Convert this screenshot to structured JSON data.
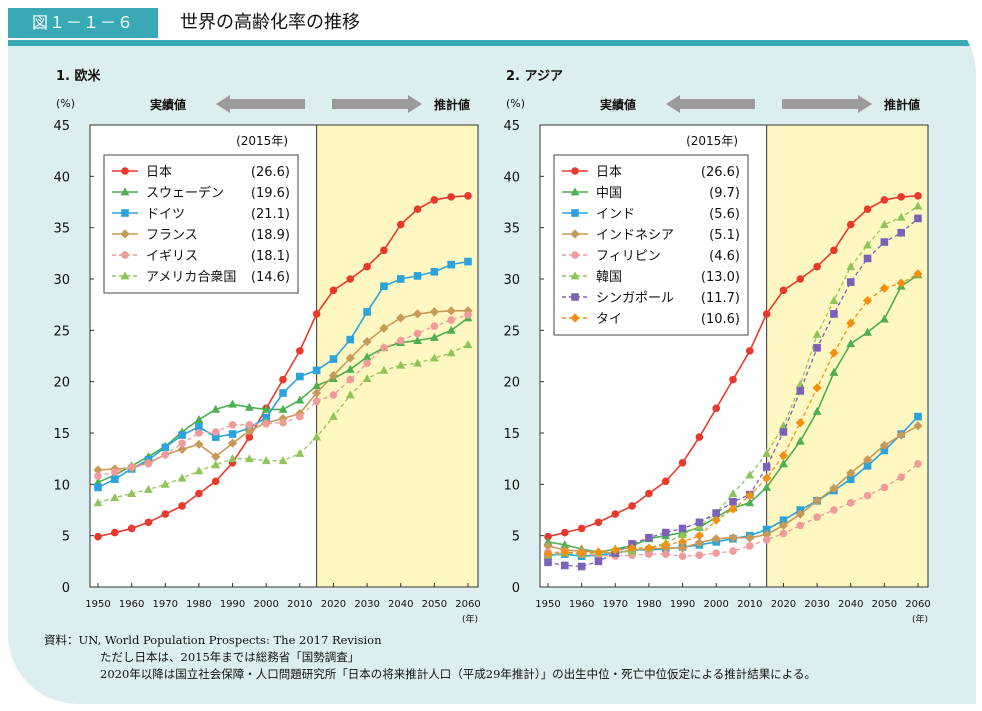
{
  "figure": {
    "label": "図１－１－６",
    "title": "世界の高齢化率の推移"
  },
  "chart_data": [
    {
      "type": "line",
      "title": "1. 欧米",
      "ylabel": "(%)",
      "xlabel": "(年)",
      "ylim": [
        0,
        45
      ],
      "xlim": [
        1950,
        2060
      ],
      "yticks": [
        0,
        5,
        10,
        15,
        20,
        25,
        30,
        35,
        40,
        45
      ],
      "xticks": [
        1950,
        1960,
        1970,
        1980,
        1990,
        2000,
        2010,
        2020,
        2030,
        2040,
        2050,
        2060
      ],
      "grid": false,
      "projection_start": 2015,
      "label_actual": "実績値",
      "label_projected": "推計値",
      "legend_title": "(2015年)",
      "legend_position": "top-left",
      "x": [
        1950,
        1955,
        1960,
        1965,
        1970,
        1975,
        1980,
        1985,
        1990,
        1995,
        2000,
        2005,
        2010,
        2015,
        2020,
        2025,
        2030,
        2035,
        2040,
        2045,
        2050,
        2055,
        2060
      ],
      "series": [
        {
          "name": "日本",
          "value_2015": "(26.6)",
          "color": "#e8392a",
          "marker": "circle",
          "dashed": false,
          "values": [
            4.9,
            5.3,
            5.7,
            6.3,
            7.1,
            7.9,
            9.1,
            10.3,
            12.1,
            14.6,
            17.4,
            20.2,
            23.0,
            26.6,
            28.9,
            30.0,
            31.2,
            32.8,
            35.3,
            36.8,
            37.7,
            38.0,
            38.1
          ]
        },
        {
          "name": "スウェーデン",
          "value_2015": "(19.6)",
          "color": "#4caf50",
          "marker": "triangle",
          "dashed": false,
          "values": [
            10.2,
            10.9,
            11.8,
            12.7,
            13.7,
            15.1,
            16.3,
            17.3,
            17.8,
            17.5,
            17.3,
            17.3,
            18.2,
            19.6,
            20.3,
            21.2,
            22.4,
            23.3,
            23.8,
            24.0,
            24.3,
            25.0,
            26.2
          ]
        },
        {
          "name": "ドイツ",
          "value_2015": "(21.1)",
          "color": "#2ba3db",
          "marker": "square",
          "dashed": false,
          "values": [
            9.7,
            10.5,
            11.5,
            12.4,
            13.6,
            14.8,
            15.6,
            14.6,
            14.9,
            15.5,
            16.5,
            18.9,
            20.5,
            21.1,
            22.2,
            24.1,
            26.8,
            29.3,
            30.0,
            30.3,
            30.7,
            31.4,
            31.7
          ]
        },
        {
          "name": "フランス",
          "value_2015": "(18.9)",
          "color": "#c89a5a",
          "marker": "diamond",
          "dashed": false,
          "values": [
            11.4,
            11.5,
            11.6,
            12.1,
            12.9,
            13.4,
            13.9,
            12.7,
            14.0,
            15.2,
            16.0,
            16.4,
            16.9,
            18.9,
            20.6,
            22.3,
            23.9,
            25.2,
            26.2,
            26.6,
            26.8,
            26.9,
            26.9
          ]
        },
        {
          "name": "イギリス",
          "value_2015": "(18.1)",
          "color": "#f19a9a",
          "marker": "circle",
          "dashed": true,
          "values": [
            10.8,
            11.2,
            11.7,
            12.0,
            12.9,
            14.0,
            15.0,
            15.1,
            15.8,
            15.8,
            15.9,
            16.0,
            16.6,
            18.1,
            18.7,
            20.2,
            21.8,
            23.3,
            24.0,
            24.7,
            25.4,
            26.0,
            26.5
          ]
        },
        {
          "name": "アメリカ合衆国",
          "value_2015": "(14.6)",
          "color": "#8fc558",
          "marker": "triangle",
          "dashed": true,
          "values": [
            8.2,
            8.7,
            9.1,
            9.5,
            10.0,
            10.6,
            11.3,
            11.9,
            12.5,
            12.5,
            12.3,
            12.3,
            13.0,
            14.6,
            16.6,
            18.7,
            20.3,
            21.1,
            21.6,
            21.8,
            22.3,
            22.8,
            23.6
          ]
        }
      ]
    },
    {
      "type": "line",
      "title": "2. アジア",
      "ylabel": "(%)",
      "xlabel": "(年)",
      "ylim": [
        0,
        45
      ],
      "xlim": [
        1950,
        2060
      ],
      "yticks": [
        0,
        5,
        10,
        15,
        20,
        25,
        30,
        35,
        40,
        45
      ],
      "xticks": [
        1950,
        1960,
        1970,
        1980,
        1990,
        2000,
        2010,
        2020,
        2030,
        2040,
        2050,
        2060
      ],
      "grid": false,
      "projection_start": 2015,
      "label_actual": "実績値",
      "label_projected": "推計値",
      "legend_title": "(2015年)",
      "legend_position": "top-left",
      "x": [
        1950,
        1955,
        1960,
        1965,
        1970,
        1975,
        1980,
        1985,
        1990,
        1995,
        2000,
        2005,
        2010,
        2015,
        2020,
        2025,
        2030,
        2035,
        2040,
        2045,
        2050,
        2055,
        2060
      ],
      "series": [
        {
          "name": "日本",
          "value_2015": "(26.6)",
          "color": "#e8392a",
          "marker": "circle",
          "dashed": false,
          "values": [
            4.9,
            5.3,
            5.7,
            6.3,
            7.1,
            7.9,
            9.1,
            10.3,
            12.1,
            14.6,
            17.4,
            20.2,
            23.0,
            26.6,
            28.9,
            30.0,
            31.2,
            32.8,
            35.3,
            36.8,
            37.7,
            38.0,
            38.1
          ]
        },
        {
          "name": "中国",
          "value_2015": "(9.7)",
          "color": "#4caf50",
          "marker": "triangle",
          "dashed": false,
          "values": [
            4.4,
            4.1,
            3.7,
            3.4,
            3.7,
            4.0,
            4.7,
            5.0,
            5.3,
            5.8,
            6.8,
            7.7,
            8.2,
            9.7,
            12.0,
            14.2,
            17.1,
            20.9,
            23.7,
            24.8,
            26.1,
            29.3,
            30.4
          ]
        },
        {
          "name": "インド",
          "value_2015": "(5.6)",
          "color": "#2ba3db",
          "marker": "square",
          "dashed": false,
          "values": [
            3.1,
            3.2,
            3.0,
            3.1,
            3.3,
            3.6,
            3.6,
            3.7,
            3.9,
            4.1,
            4.4,
            4.7,
            5.0,
            5.6,
            6.5,
            7.5,
            8.4,
            9.4,
            10.5,
            11.8,
            13.3,
            14.9,
            16.6
          ]
        },
        {
          "name": "インドネシア",
          "value_2015": "(5.1)",
          "color": "#c89a5a",
          "marker": "diamond",
          "dashed": false,
          "values": [
            4.0,
            3.6,
            3.5,
            3.4,
            3.3,
            3.6,
            3.7,
            3.8,
            3.8,
            4.3,
            4.7,
            4.8,
            4.8,
            5.1,
            6.0,
            7.1,
            8.4,
            9.6,
            11.1,
            12.4,
            13.8,
            14.8,
            15.7
          ]
        },
        {
          "name": "フィリピン",
          "value_2015": "(4.6)",
          "color": "#f19a9a",
          "marker": "circle",
          "dashed": true,
          "values": [
            3.4,
            3.4,
            3.2,
            3.1,
            3.0,
            3.1,
            3.2,
            3.2,
            3.0,
            3.1,
            3.3,
            3.5,
            4.0,
            4.6,
            5.2,
            6.0,
            6.8,
            7.5,
            8.2,
            8.9,
            9.7,
            10.7,
            12.0
          ]
        },
        {
          "name": "韓国",
          "value_2015": "(13.0)",
          "color": "#8fc558",
          "marker": "triangle",
          "dashed": true,
          "values": [
            3.0,
            3.3,
            3.2,
            3.3,
            3.3,
            3.5,
            3.8,
            4.3,
            5.1,
            5.9,
            7.2,
            9.1,
            10.9,
            13.0,
            15.7,
            19.7,
            24.6,
            27.9,
            31.2,
            33.3,
            35.3,
            36.0,
            37.1
          ]
        },
        {
          "name": "シンガポール",
          "value_2015": "(11.7)",
          "color": "#7a62b8",
          "marker": "square",
          "dashed": true,
          "values": [
            2.4,
            2.1,
            2.0,
            2.5,
            3.3,
            4.2,
            4.8,
            5.3,
            5.7,
            6.3,
            7.2,
            8.3,
            9.0,
            11.7,
            15.1,
            19.1,
            23.3,
            26.6,
            29.7,
            32.0,
            33.6,
            34.5,
            35.9
          ]
        },
        {
          "name": "タイ",
          "value_2015": "(10.6)",
          "color": "#f39012",
          "marker": "diamond",
          "dashed": true,
          "values": [
            3.2,
            3.4,
            3.3,
            3.4,
            3.6,
            3.8,
            3.8,
            4.1,
            4.4,
            5.0,
            6.5,
            7.6,
            8.9,
            10.6,
            12.8,
            16.0,
            19.4,
            22.8,
            25.7,
            27.9,
            29.1,
            29.6,
            30.5
          ]
        }
      ]
    }
  ],
  "source": {
    "line1": "資料：UN, World Population Prospects: The 2017 Revision",
    "line2": "ただし日本は、2015年までは総務省「国勢調査」",
    "line3": "2020年以降は国立社会保障・人口問題研究所「日本の将来推計人口（平成29年推計）」の出生中位・死亡中位仮定による推計結果による。"
  }
}
